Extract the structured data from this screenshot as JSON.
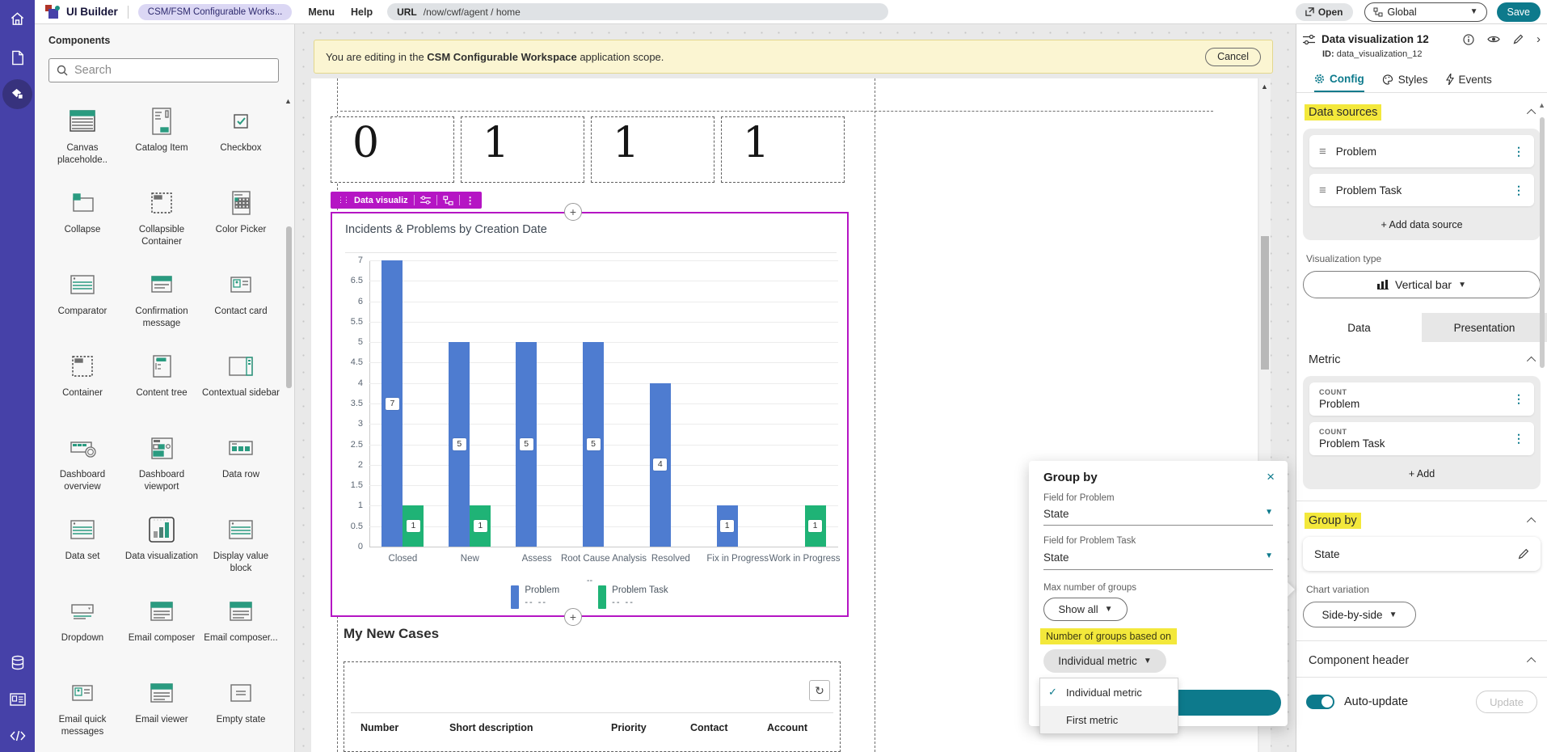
{
  "header": {
    "app_title": "UI Builder",
    "workspace_pill": "CSM/FSM Configurable Works...",
    "menu_label": "Menu",
    "help_label": "Help",
    "url_label": "URL",
    "url_path": "/now/cwf/agent / home",
    "open_label": "Open",
    "scope_value": "Global",
    "save_label": "Save"
  },
  "components_panel": {
    "title": "Components",
    "search_placeholder": "Search",
    "items": [
      {
        "label": "Canvas placeholde..",
        "icon": "window"
      },
      {
        "label": "Catalog Item",
        "icon": "form"
      },
      {
        "label": "Checkbox",
        "icon": "checkbox"
      },
      {
        "label": "Collapse",
        "icon": "panel"
      },
      {
        "label": "Collapsible Container",
        "icon": "dashedbox"
      },
      {
        "label": "Color Picker",
        "icon": "grid"
      },
      {
        "label": "Comparator",
        "icon": "listlines"
      },
      {
        "label": "Confirmation message",
        "icon": "dialog"
      },
      {
        "label": "Contact card",
        "icon": "card"
      },
      {
        "label": "Container",
        "icon": "dashedbox"
      },
      {
        "label": "Content tree",
        "icon": "tree"
      },
      {
        "label": "Contextual sidebar",
        "icon": "sidebar"
      },
      {
        "label": "Dashboard overview",
        "icon": "toolbar"
      },
      {
        "label": "Dashboard viewport",
        "icon": "viewport"
      },
      {
        "label": "Data row",
        "icon": "row"
      },
      {
        "label": "Data set",
        "icon": "listlines"
      },
      {
        "label": "Data visualization",
        "icon": "bars"
      },
      {
        "label": "Display value block",
        "icon": "listlines"
      },
      {
        "label": "Dropdown",
        "icon": "dropdown"
      },
      {
        "label": "Email composer",
        "icon": "mail"
      },
      {
        "label": "Email composer...",
        "icon": "mail"
      },
      {
        "label": "Email quick messages",
        "icon": "card"
      },
      {
        "label": "Email viewer",
        "icon": "mail"
      },
      {
        "label": "Empty state",
        "icon": "emptystate"
      }
    ]
  },
  "banner": {
    "text_prefix": "You are editing in the ",
    "text_bold": "CSM Configurable Workspace",
    "text_suffix": " application scope.",
    "cancel_label": "Cancel"
  },
  "canvas": {
    "metric_boxes": [
      "0",
      "1",
      "1",
      "1"
    ],
    "selection_toolbar_label": "Data visualiz",
    "section_title": "My New Cases",
    "table_columns": [
      "Number",
      "Short description",
      "Priority",
      "Contact",
      "Account"
    ],
    "axis_placeholder": "--",
    "legend_dashes": "--  --"
  },
  "chart_data": {
    "type": "bar",
    "title": "Incidents & Problems by Creation Date",
    "categories": [
      "Closed",
      "New",
      "Assess",
      "Root Cause Analysis",
      "Resolved",
      "Fix in Progress",
      "Work in Progress"
    ],
    "series": [
      {
        "name": "Problem",
        "color": "#4e7cd0",
        "values": [
          7,
          5,
          5,
          5,
          4,
          1,
          null
        ]
      },
      {
        "name": "Problem Task",
        "color": "#1fb376",
        "values": [
          1,
          1,
          null,
          null,
          null,
          null,
          1
        ]
      }
    ],
    "ylim": [
      0,
      7
    ],
    "ytick_step": 0.5,
    "grid": true,
    "bar_labels": true,
    "legend_position": "bottom",
    "xlabel": "--"
  },
  "popup": {
    "title": "Group by",
    "fields": [
      {
        "label": "Field for Problem",
        "value": "State"
      },
      {
        "label": "Field for Problem Task",
        "value": "State"
      }
    ],
    "max_groups_label": "Max number of groups",
    "max_groups_value": "Show all",
    "groups_based_on_label": "Number of groups based on",
    "groups_based_on_value": "Individual metric",
    "menu_items": [
      {
        "label": "Individual metric",
        "checked": true
      },
      {
        "label": "First metric",
        "checked": false
      }
    ]
  },
  "panel": {
    "title": "Data visualization 12",
    "id_label": "ID:",
    "id_value": "data_visualization_12",
    "tabs": [
      {
        "label": "Config",
        "active": true
      },
      {
        "label": "Styles",
        "active": false
      },
      {
        "label": "Events",
        "active": false
      }
    ],
    "data_sources": {
      "title": "Data sources",
      "items": [
        "Problem",
        "Problem Task"
      ],
      "add_label": "+ Add data source"
    },
    "visualization_type_label": "Visualization type",
    "visualization_type_value": "Vertical bar",
    "subtabs": [
      {
        "label": "Data",
        "active": true
      },
      {
        "label": "Presentation",
        "active": false
      }
    ],
    "metric": {
      "title": "Metric",
      "items": [
        {
          "type": "COUNT",
          "name": "Problem"
        },
        {
          "type": "COUNT",
          "name": "Problem Task"
        }
      ],
      "add_label": "+ Add"
    },
    "group_by": {
      "title": "Group by",
      "value": "State"
    },
    "chart_variation_label": "Chart variation",
    "chart_variation_value": "Side-by-side",
    "component_header": {
      "title": "Component header",
      "toggle_label": "Auto-update",
      "toggle_on": true,
      "update_label": "Update"
    }
  },
  "colors": {
    "accent_teal": "#0d7a8c",
    "selection_magenta": "#b515c4",
    "highlight_yellow": "#f3e83b",
    "bar_blue": "#4e7cd0",
    "bar_green": "#1fb376"
  }
}
